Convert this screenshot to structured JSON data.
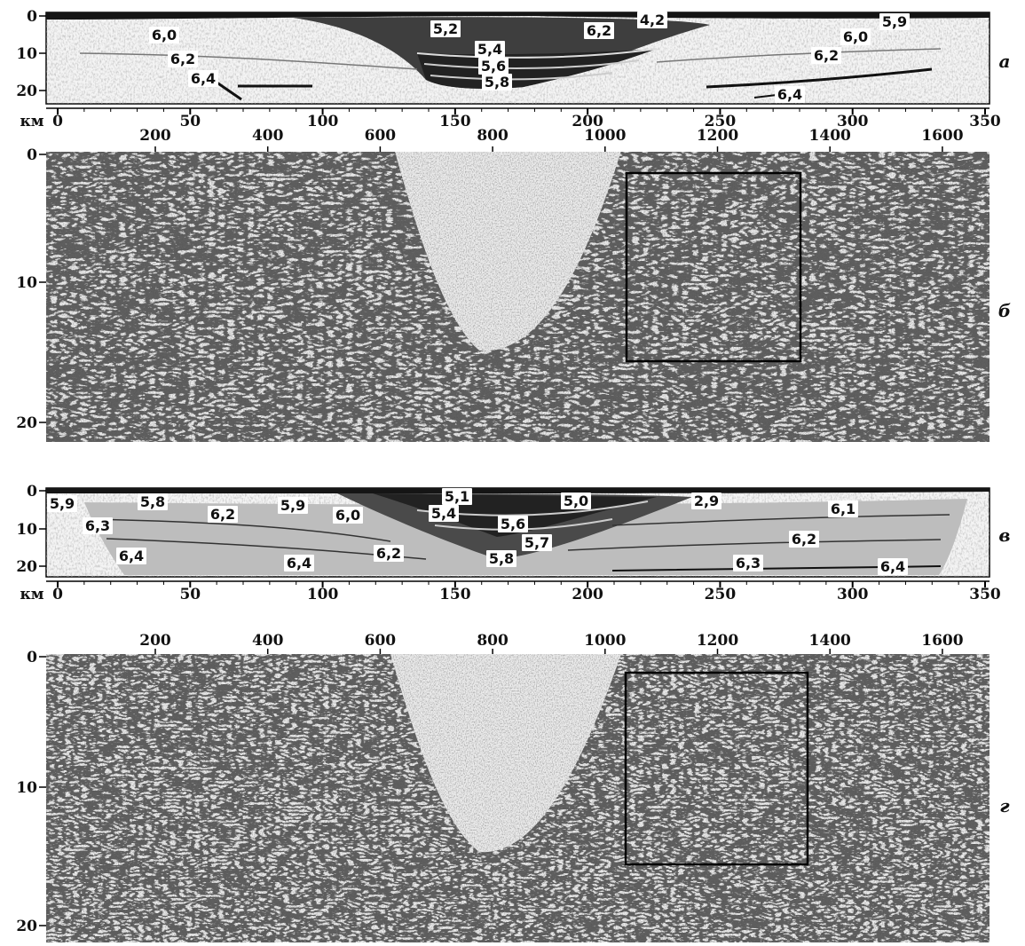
{
  "km_unit": "км",
  "panels": [
    {
      "id": "a",
      "letter": "а",
      "kind": "velocity-model",
      "depth_ticks": [
        "0",
        "10",
        "20"
      ],
      "km_ticks": [
        "0",
        "50",
        "100",
        "150",
        "200",
        "250",
        "300",
        "350"
      ],
      "velocity_labels": [
        "6,0",
        "6,2",
        "6,4",
        "5,2",
        "5,4",
        "5,6",
        "5,8",
        "6,2",
        "4,2",
        "5,9",
        "6,0",
        "6,2",
        "6,4"
      ]
    },
    {
      "id": "b",
      "letter": "б",
      "kind": "seismic-section",
      "trace_ticks": [
        "200",
        "400",
        "600",
        "800",
        "1000",
        "1200",
        "1400",
        "1600"
      ],
      "depth_ticks": [
        "0",
        "10",
        "20"
      ]
    },
    {
      "id": "v",
      "letter": "в",
      "kind": "velocity-model",
      "depth_ticks": [
        "0",
        "10",
        "20"
      ],
      "km_ticks": [
        "0",
        "50",
        "100",
        "150",
        "200",
        "250",
        "300",
        "350"
      ],
      "velocity_labels": [
        "5,9",
        "5,8",
        "6,2",
        "5,9",
        "6,0",
        "5,1",
        "5,4",
        "5,0",
        "5,6",
        "2,9",
        "6,1",
        "6,3",
        "6,4",
        "6,4",
        "6,2",
        "5,7",
        "5,8",
        "6,2",
        "6,3",
        "6,4"
      ]
    },
    {
      "id": "g",
      "letter": "г",
      "kind": "seismic-section",
      "trace_ticks": [
        "200",
        "400",
        "600",
        "800",
        "1000",
        "1200",
        "1400",
        "1600"
      ],
      "depth_ticks": [
        "0",
        "10",
        "20"
      ]
    }
  ]
}
